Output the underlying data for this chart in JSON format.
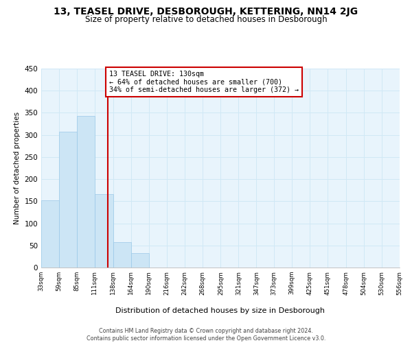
{
  "title": "13, TEASEL DRIVE, DESBOROUGH, KETTERING, NN14 2JG",
  "subtitle": "Size of property relative to detached houses in Desborough",
  "xlabel": "Distribution of detached houses by size in Desborough",
  "ylabel": "Number of detached properties",
  "bar_edges": [
    33,
    59,
    85,
    111,
    138,
    164,
    190,
    216,
    242,
    268,
    295,
    321,
    347,
    373,
    399,
    425,
    451,
    478,
    504,
    530,
    556
  ],
  "bar_heights": [
    152,
    307,
    343,
    166,
    57,
    33,
    0,
    0,
    0,
    0,
    0,
    0,
    0,
    0,
    0,
    0,
    0,
    0,
    0,
    0
  ],
  "bar_color": "#cce5f5",
  "bar_edge_color": "#9ac8e8",
  "grid_color": "#d0e8f5",
  "bg_color": "#e8f4fc",
  "property_line_x": 130,
  "property_line_color": "#cc0000",
  "annotation_text": "13 TEASEL DRIVE: 130sqm\n← 64% of detached houses are smaller (700)\n34% of semi-detached houses are larger (372) →",
  "annotation_box_color": "#cc0000",
  "ylim": [
    0,
    450
  ],
  "yticks": [
    0,
    50,
    100,
    150,
    200,
    250,
    300,
    350,
    400,
    450
  ],
  "tick_labels": [
    "33sqm",
    "59sqm",
    "85sqm",
    "111sqm",
    "138sqm",
    "164sqm",
    "190sqm",
    "216sqm",
    "242sqm",
    "268sqm",
    "295sqm",
    "321sqm",
    "347sqm",
    "373sqm",
    "399sqm",
    "425sqm",
    "451sqm",
    "478sqm",
    "504sqm",
    "530sqm",
    "556sqm"
  ],
  "footer": "Contains HM Land Registry data © Crown copyright and database right 2024.\nContains public sector information licensed under the Open Government Licence v3.0.",
  "title_fontsize": 10,
  "subtitle_fontsize": 8.5
}
